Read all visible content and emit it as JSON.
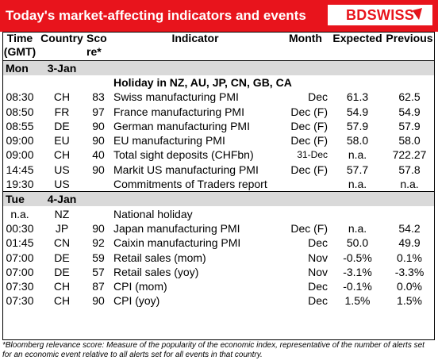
{
  "header": {
    "title": "Today's market-affecting indicators and events",
    "logo_text": "BDSWISS"
  },
  "columns": {
    "time": "Time (GMT)",
    "country": "Country",
    "score": "Score*",
    "indicator": "Indicator",
    "month": "Month",
    "expected": "Expected",
    "previous": "Previous"
  },
  "days": [
    {
      "day": "Mon",
      "date": "3-Jan",
      "rows": [
        {
          "time": "",
          "country": "",
          "score": "",
          "indicator": "Holiday in NZ, AU, JP, CN, GB, CA",
          "month": "",
          "expected": "",
          "previous": "",
          "bold": true
        },
        {
          "time": "08:30",
          "country": "CH",
          "score": "83",
          "indicator": "Swiss manufacturing PMI",
          "month": "Dec",
          "expected": "61.3",
          "previous": "62.5"
        },
        {
          "time": "08:50",
          "country": "FR",
          "score": "97",
          "indicator": "France manufacturing PMI",
          "month": "Dec (F)",
          "expected": "54.9",
          "previous": "54.9"
        },
        {
          "time": "08:55",
          "country": "DE",
          "score": "90",
          "indicator": "German manufacturing PMI",
          "month": "Dec (F)",
          "expected": "57.9",
          "previous": "57.9"
        },
        {
          "time": "09:00",
          "country": "EU",
          "score": "90",
          "indicator": "EU manufacturing PMI",
          "month": "Dec (F)",
          "expected": "58.0",
          "previous": "58.0"
        },
        {
          "time": "09:00",
          "country": "CH",
          "score": "40",
          "indicator": "Total sight deposits (CHFbn)",
          "month": "31-Dec",
          "expected": "n.a.",
          "previous": "722.27",
          "small_month": true
        },
        {
          "time": "14:45",
          "country": "US",
          "score": "90",
          "indicator": "Markit US manufacturing PMI",
          "month": "Dec (F)",
          "expected": "57.7",
          "previous": "57.8"
        },
        {
          "time": "19:30",
          "country": "US",
          "score": "",
          "indicator": "Commitments of Traders  report",
          "month": "",
          "expected": "n.a.",
          "previous": "n.a."
        }
      ]
    },
    {
      "day": "Tue",
      "date": "4-Jan",
      "rows": [
        {
          "time": "n.a.",
          "country": "NZ",
          "score": "",
          "indicator": "National holiday",
          "month": "",
          "expected": "",
          "previous": ""
        },
        {
          "time": "00:30",
          "country": "JP",
          "score": "90",
          "indicator": "Japan manufacturing PMI",
          "month": "Dec (F)",
          "expected": "n.a.",
          "previous": "54.2"
        },
        {
          "time": "01:45",
          "country": "CN",
          "score": "92",
          "indicator": "Caixin manufacturing PMI",
          "month": "Dec",
          "expected": "50.0",
          "previous": "49.9"
        },
        {
          "time": "07:00",
          "country": "DE",
          "score": "59",
          "indicator": "Retail sales (mom)",
          "month": "Nov",
          "expected": "-0.5%",
          "previous": "0.1%"
        },
        {
          "time": "07:00",
          "country": "DE",
          "score": "57",
          "indicator": "Retail sales (yoy)",
          "month": "Nov",
          "expected": "-3.1%",
          "previous": "-3.3%"
        },
        {
          "time": "07:30",
          "country": "CH",
          "score": "87",
          "indicator": "CPI (mom)",
          "month": "Dec",
          "expected": "-0.1%",
          "previous": "0.0%"
        },
        {
          "time": "07:30",
          "country": "CH",
          "score": "90",
          "indicator": "CPI (yoy)",
          "month": "Dec",
          "expected": "1.5%",
          "previous": "1.5%"
        }
      ]
    }
  ],
  "footnote": "*Bloomberg relevance score:  Measure of the popularity of the economic index, representative of the number of alerts set for an economic event relative to all alerts set for all events in that country."
}
